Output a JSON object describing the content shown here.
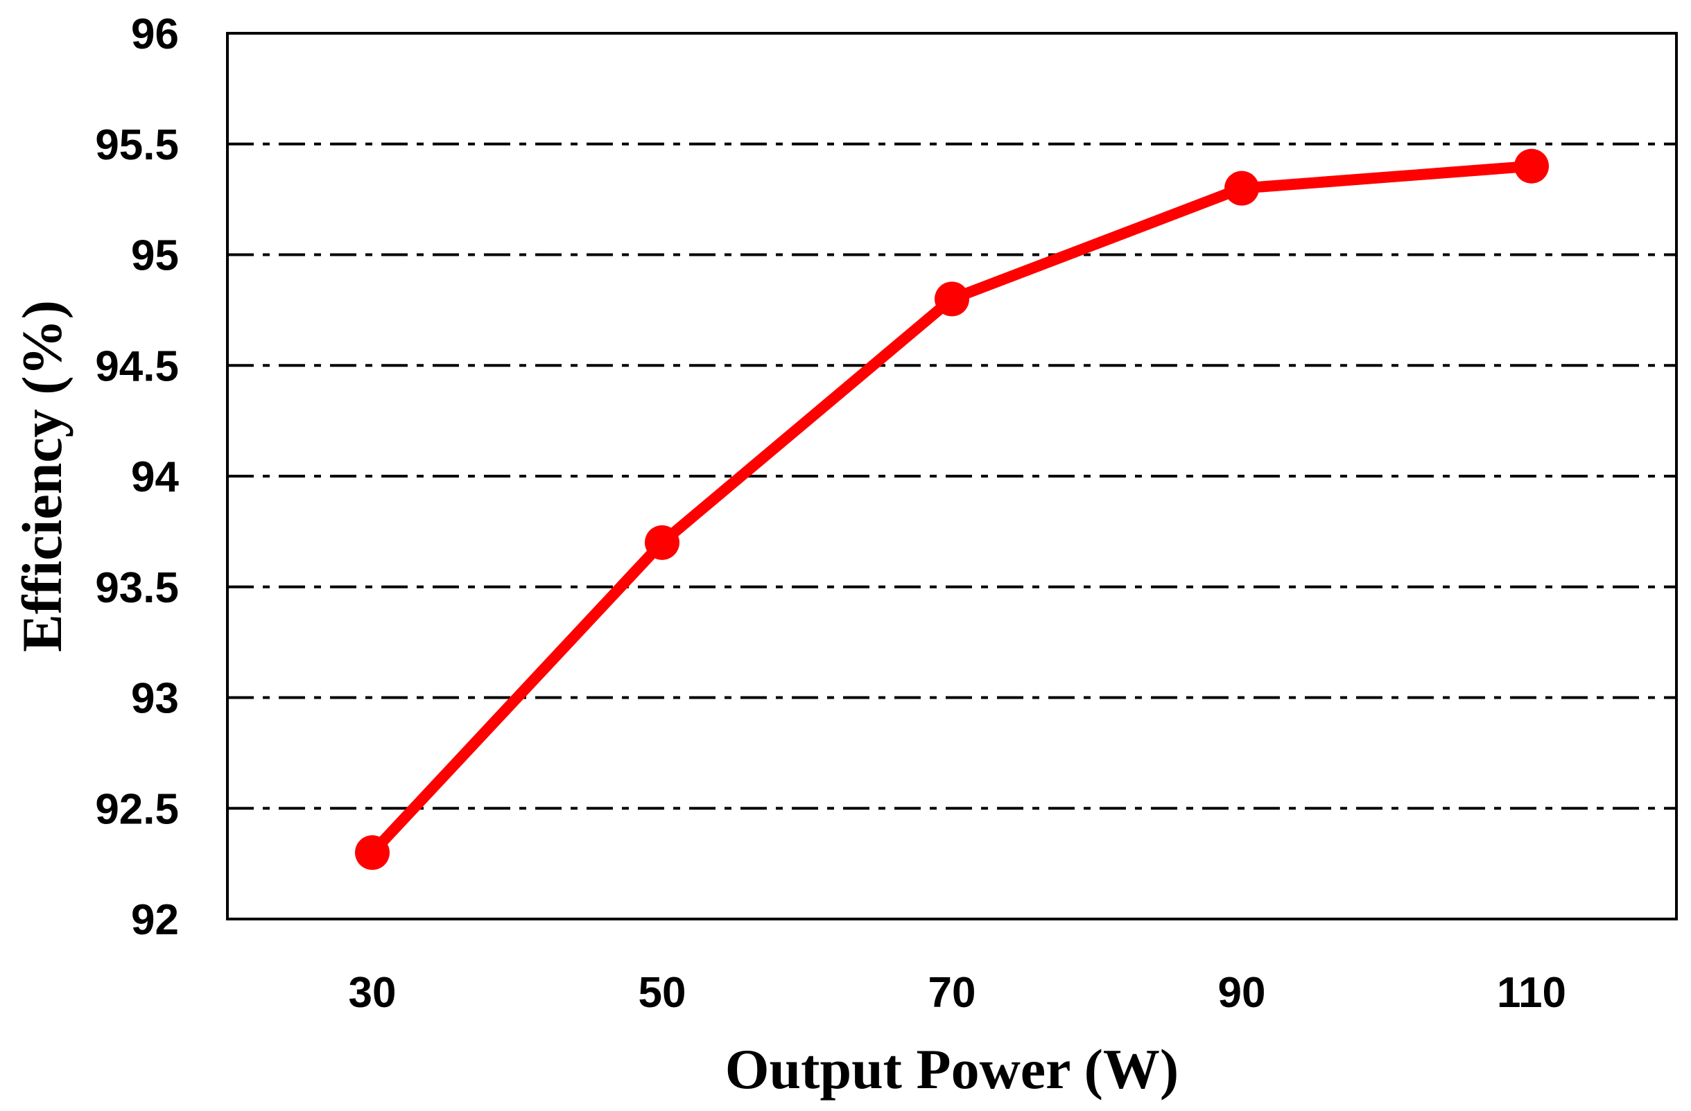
{
  "chart_data": {
    "type": "line",
    "title": "",
    "xlabel": "Output Power (W)",
    "ylabel": "Efficiency (%)",
    "xlim": [
      20,
      120
    ],
    "ylim": [
      92,
      96
    ],
    "xticks": [
      30,
      50,
      70,
      90,
      110
    ],
    "yticks": [
      92,
      92.5,
      93,
      93.5,
      94,
      94.5,
      95,
      95.5,
      96
    ],
    "ytick_labels": [
      "92",
      "92.5",
      "93",
      "93.5",
      "94",
      "94.5",
      "95",
      "95.5",
      "96"
    ],
    "xtick_labels": [
      "30",
      "50",
      "70",
      "90",
      "110"
    ],
    "grid": "horizontal dash-dot",
    "legend": "none",
    "series": [
      {
        "color": "#ff0000",
        "marker": "circle",
        "x": [
          30,
          50,
          70,
          90,
          110
        ],
        "y": [
          92.3,
          93.7,
          94.8,
          95.3,
          95.4
        ]
      }
    ]
  }
}
